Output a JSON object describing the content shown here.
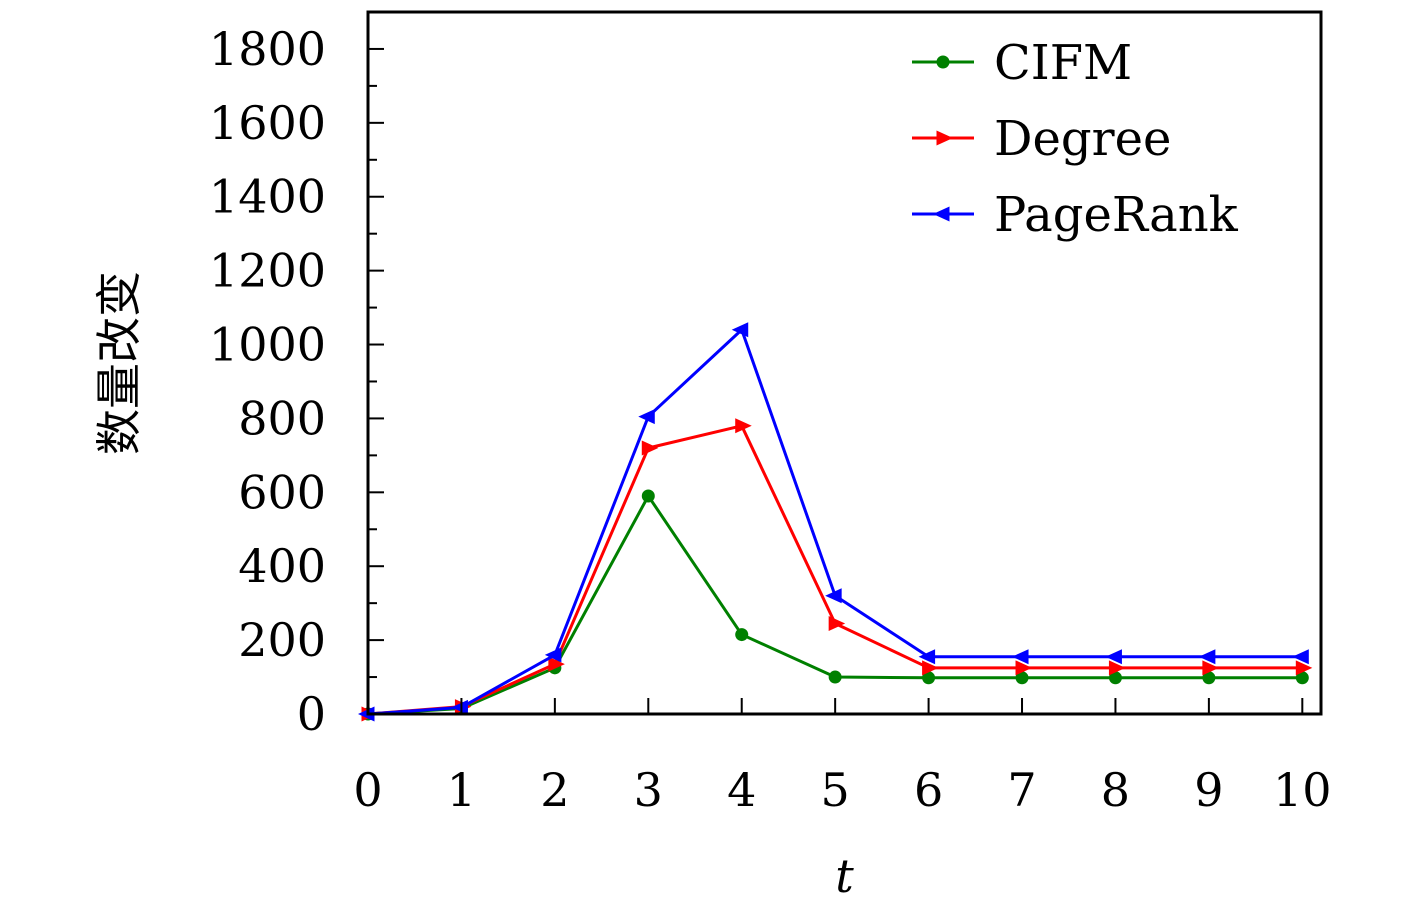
{
  "chart_data": {
    "type": "line",
    "xlabel": "t",
    "ylabel": "数量改变",
    "x": [
      0,
      1,
      2,
      3,
      4,
      5,
      6,
      7,
      8,
      9,
      10
    ],
    "xlim": [
      0,
      10.2
    ],
    "ylim": [
      0,
      1900
    ],
    "xticks": [
      0,
      1,
      2,
      3,
      4,
      5,
      6,
      7,
      8,
      9,
      10
    ],
    "yticks": [
      0,
      200,
      400,
      600,
      800,
      1000,
      1200,
      1400,
      1600,
      1800
    ],
    "grid": false,
    "legend_position": "top-right",
    "series": [
      {
        "name": "CIFM",
        "color": "#008000",
        "marker": "circle",
        "values": [
          0,
          15,
          125,
          590,
          215,
          100,
          98,
          98,
          98,
          98,
          98
        ]
      },
      {
        "name": "Degree",
        "color": "#ff0000",
        "marker": "triangle-right",
        "values": [
          0,
          20,
          135,
          720,
          780,
          245,
          125,
          125,
          125,
          125,
          125
        ]
      },
      {
        "name": "PageRank",
        "color": "#0000ff",
        "marker": "triangle-left",
        "values": [
          0,
          18,
          160,
          805,
          1040,
          320,
          155,
          155,
          155,
          155,
          155
        ]
      }
    ]
  }
}
